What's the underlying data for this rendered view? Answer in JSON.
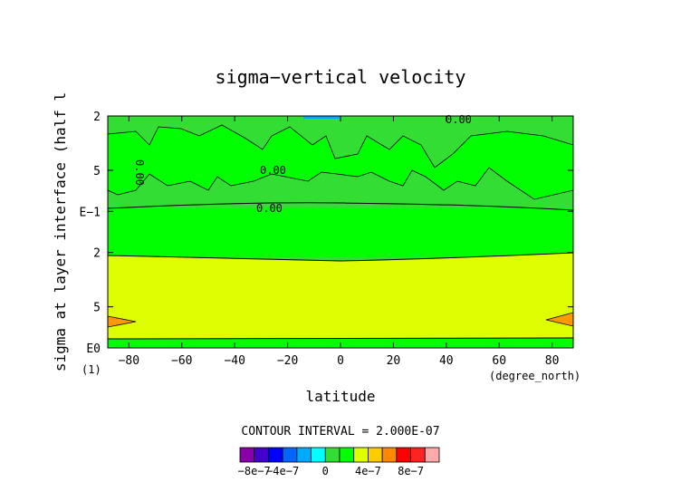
{
  "chart_data": {
    "type": "heatmap",
    "title": "sigma−vertical velocity",
    "xlabel": "latitude",
    "x_unit": "(degree_north)",
    "ylabel": "sigma at layer interface (half l",
    "y_scale": "log",
    "y_axis": "inverted",
    "y_unit": "(1)",
    "xlim": [
      -88,
      88
    ],
    "ylim": [
      0.02,
      1.0
    ],
    "x_ticks": [
      "−80",
      "−60",
      "−40",
      "−20",
      "0",
      "20",
      "40",
      "60",
      "80"
    ],
    "x_tick_values": [
      -80,
      -60,
      -40,
      -20,
      0,
      20,
      40,
      60,
      80
    ],
    "y_ticks": [
      "2",
      "5",
      "E−1",
      "2",
      "5",
      "E0"
    ],
    "y_tick_values": [
      0.02,
      0.05,
      0.1,
      0.2,
      0.5,
      1.0
    ],
    "contour_interval_text": "CONTOUR INTERVAL = 2.000E-07",
    "contour_labels": [
      "0.00",
      "0.00",
      "0.00",
      "0.00"
    ],
    "bands": [
      {
        "sigma_range": [
          0.02,
          0.1
        ],
        "value_range": [
          0,
          2e-07
        ],
        "color": "#33dd33"
      },
      {
        "sigma_range": [
          0.1,
          0.19
        ],
        "value_range": [
          2e-07,
          4e-07
        ],
        "color": "#00ff00"
      },
      {
        "sigma_range": [
          0.19,
          0.9
        ],
        "value_range": [
          4e-07,
          6e-07
        ],
        "color": "#ddff00"
      },
      {
        "sigma_range": [
          0.9,
          1.0
        ],
        "value_range": [
          2e-07,
          4e-07
        ],
        "color": "#00ff00"
      }
    ],
    "features": [
      {
        "lat": -84,
        "sigma": 0.57,
        "value_range": [
          6e-07,
          8e-07
        ],
        "color": "#ff9900"
      },
      {
        "lat": 84,
        "sigma": 0.57,
        "value_range": [
          6e-07,
          8e-07
        ],
        "color": "#ff9900"
      }
    ],
    "colorbar": {
      "colors": [
        "#8800aa",
        "#4400cc",
        "#0000ff",
        "#0066ff",
        "#00aaff",
        "#00ffff",
        "#33dd33",
        "#00ff00",
        "#ddff00",
        "#ffcc00",
        "#ff8800",
        "#ff0000",
        "#ff2222",
        "#ffaaaa"
      ],
      "tick_labels": [
        "−8e−7",
        "−4e−7",
        "0",
        "4e−7",
        "8e−7"
      ]
    }
  }
}
